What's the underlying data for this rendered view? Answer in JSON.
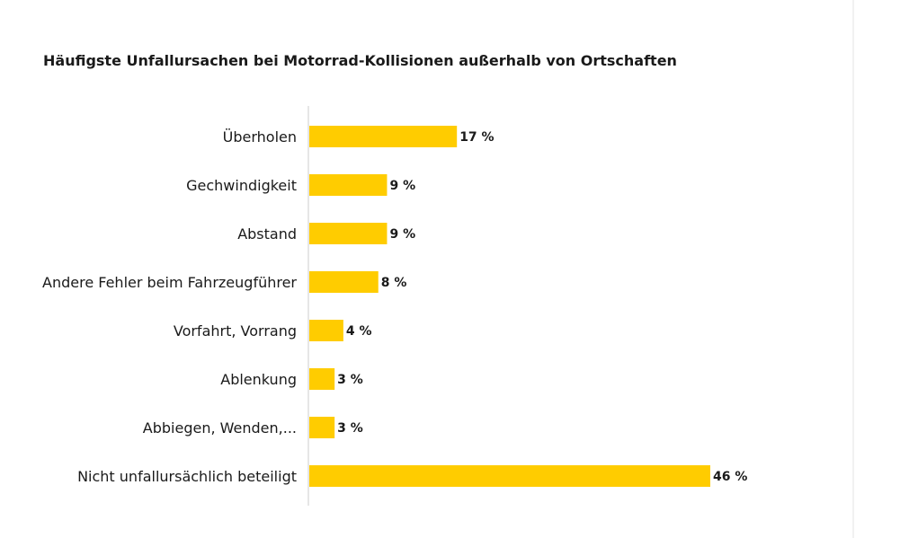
{
  "chart_data": {
    "type": "bar",
    "orientation": "horizontal",
    "title": "Häufigste Unfallursachen bei Motorrad-Kollisionen außerhalb von Ortschaften",
    "categories": [
      "Überholen",
      "Gechwindigkeit",
      "Abstand",
      "Andere Fehler beim Fahrzeugführer",
      "Vorfahrt, Vorrang",
      "Ablenkung",
      "Abbiegen, Wenden,...",
      "Nicht unfallursächlich beteiligt"
    ],
    "values": [
      17,
      9,
      9,
      8,
      4,
      3,
      3,
      46
    ],
    "value_labels": [
      "17 %",
      "9 %",
      "9 %",
      "8 %",
      "4 %",
      "3 %",
      "3 %",
      "46 %"
    ],
    "unit": "%",
    "xlim": [
      0,
      46
    ],
    "grid": false,
    "bar_color": "#ffcc00",
    "axis_color": "#cccccc"
  }
}
